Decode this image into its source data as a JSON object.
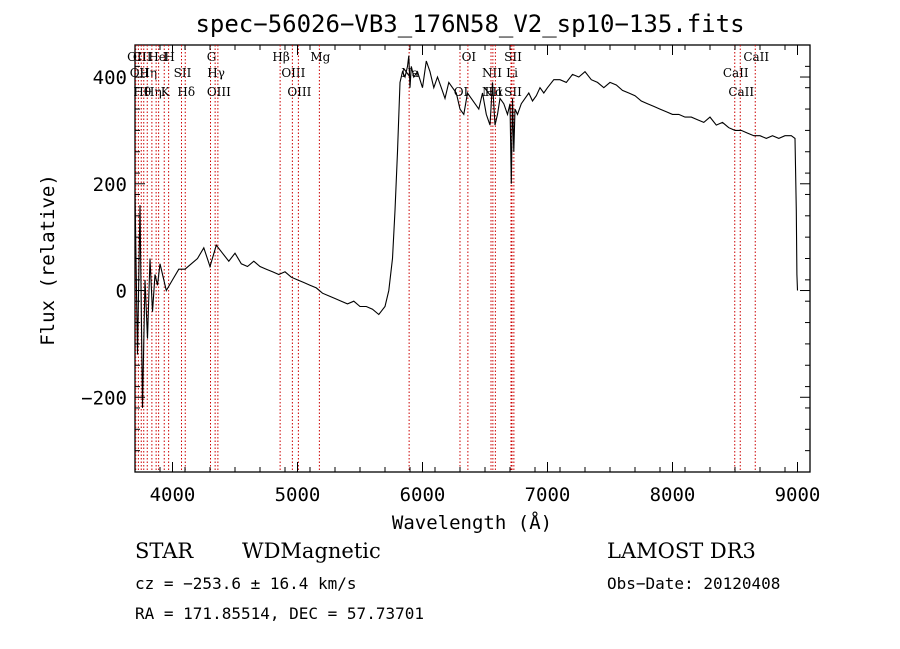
{
  "chart_data": {
    "type": "line",
    "title": "spec−56026−VB3_176N58_V2_sp10−135.fits",
    "xlabel": "Wavelength (Å)",
    "ylabel": "Flux (relative)",
    "xlim": [
      3700,
      9100
    ],
    "ylim": [
      -340,
      460
    ],
    "xticks": [
      4000,
      5000,
      6000,
      7000,
      8000,
      9000
    ],
    "yticks": [
      -200,
      0,
      200,
      400
    ],
    "xtick_labels": [
      "4000",
      "5000",
      "6000",
      "7000",
      "8000",
      "9000"
    ],
    "ytick_labels": [
      "−200",
      "0",
      "200",
      "400"
    ],
    "series": [
      {
        "name": "flux",
        "x": [
          3700,
          3720,
          3740,
          3760,
          3780,
          3800,
          3820,
          3840,
          3860,
          3880,
          3900,
          3950,
          4000,
          4050,
          4100,
          4150,
          4200,
          4250,
          4300,
          4350,
          4400,
          4450,
          4500,
          4550,
          4600,
          4650,
          4700,
          4750,
          4800,
          4850,
          4900,
          4950,
          5000,
          5050,
          5100,
          5150,
          5200,
          5250,
          5300,
          5350,
          5400,
          5450,
          5500,
          5550,
          5600,
          5650,
          5700,
          5730,
          5760,
          5780,
          5800,
          5820,
          5840,
          5860,
          5880,
          5890,
          5900,
          5910,
          5930,
          5960,
          6000,
          6030,
          6060,
          6090,
          6120,
          6150,
          6180,
          6210,
          6240,
          6270,
          6300,
          6330,
          6360,
          6390,
          6420,
          6450,
          6480,
          6510,
          6540,
          6560,
          6580,
          6600,
          6620,
          6650,
          6680,
          6700,
          6710,
          6720,
          6730,
          6740,
          6760,
          6790,
          6820,
          6850,
          6880,
          6910,
          6940,
          6970,
          7000,
          7050,
          7100,
          7150,
          7200,
          7250,
          7300,
          7350,
          7400,
          7450,
          7500,
          7550,
          7600,
          7650,
          7700,
          7750,
          7800,
          7850,
          7900,
          7950,
          8000,
          8050,
          8100,
          8150,
          8200,
          8250,
          8300,
          8350,
          8400,
          8450,
          8500,
          8550,
          8600,
          8650,
          8700,
          8750,
          8800,
          8850,
          8900,
          8950,
          8980,
          8990,
          8995,
          9000
        ],
        "y": [
          180,
          -120,
          160,
          -220,
          20,
          -90,
          60,
          -40,
          30,
          10,
          50,
          0,
          20,
          40,
          40,
          50,
          60,
          80,
          45,
          85,
          70,
          55,
          70,
          50,
          45,
          55,
          45,
          40,
          35,
          30,
          35,
          25,
          20,
          15,
          10,
          5,
          -5,
          -10,
          -15,
          -20,
          -25,
          -20,
          -30,
          -30,
          -35,
          -45,
          -30,
          0,
          60,
          150,
          260,
          390,
          410,
          400,
          420,
          440,
          380,
          420,
          400,
          410,
          380,
          430,
          410,
          380,
          400,
          380,
          360,
          390,
          380,
          370,
          340,
          330,
          370,
          360,
          350,
          340,
          370,
          330,
          310,
          390,
          310,
          330,
          360,
          350,
          330,
          350,
          200,
          360,
          260,
          340,
          330,
          350,
          360,
          370,
          355,
          365,
          380,
          370,
          380,
          395,
          395,
          390,
          405,
          400,
          410,
          395,
          390,
          380,
          390,
          385,
          375,
          370,
          365,
          355,
          350,
          345,
          340,
          335,
          330,
          330,
          325,
          325,
          320,
          315,
          325,
          310,
          315,
          305,
          300,
          300,
          295,
          290,
          290,
          285,
          290,
          285,
          290,
          290,
          285,
          150,
          30,
          0
        ]
      }
    ],
    "lines": [
      {
        "wl": 3706,
        "labels": [
          "OII"
        ]
      },
      {
        "wl": 3727,
        "labels": [
          "OII"
        ]
      },
      {
        "wl": 3750,
        "labels": [
          "Hθ",
          "CII"
        ]
      },
      {
        "wl": 3770,
        "labels": []
      },
      {
        "wl": 3798,
        "labels": [
          "Hη"
        ]
      },
      {
        "wl": 3835,
        "labels": [
          "Hη"
        ]
      },
      {
        "wl": 3869,
        "labels": [
          "He"
        ]
      },
      {
        "wl": 3889,
        "labels": []
      },
      {
        "wl": 3934,
        "labels": [
          "K",
          "I"
        ]
      },
      {
        "wl": 3969,
        "labels": [
          "H"
        ]
      },
      {
        "wl": 4072,
        "labels": [
          "SII"
        ]
      },
      {
        "wl": 4102,
        "labels": [
          "Hδ"
        ]
      },
      {
        "wl": 4304,
        "labels": [
          "G"
        ]
      },
      {
        "wl": 4341,
        "labels": [
          "Hγ"
        ]
      },
      {
        "wl": 4363,
        "labels": [
          "OIII"
        ]
      },
      {
        "wl": 4861,
        "labels": [
          "Hβ"
        ]
      },
      {
        "wl": 4959,
        "labels": [
          "OIII"
        ]
      },
      {
        "wl": 5007,
        "labels": [
          "OIII"
        ]
      },
      {
        "wl": 5175,
        "labels": [
          "Mg"
        ]
      },
      {
        "wl": 5893,
        "labels": [
          "Na"
        ]
      },
      {
        "wl": 6300,
        "labels": [
          "OI"
        ]
      },
      {
        "wl": 6363,
        "labels": [
          "OI"
        ]
      },
      {
        "wl": 6548,
        "labels": [
          "NII",
          "NII"
        ]
      },
      {
        "wl": 6563,
        "labels": [
          "Hα"
        ]
      },
      {
        "wl": 6583,
        "labels": []
      },
      {
        "wl": 6708,
        "labels": [
          "Li"
        ]
      },
      {
        "wl": 6716,
        "labels": [
          "SII",
          "SII"
        ]
      },
      {
        "wl": 6731,
        "labels": []
      },
      {
        "wl": 8498,
        "labels": [
          "CaII"
        ]
      },
      {
        "wl": 8542,
        "labels": [
          "CaII"
        ]
      },
      {
        "wl": 8662,
        "labels": [
          "CaII"
        ]
      }
    ],
    "line_label_color": "#cc0000",
    "grid": false
  },
  "info": {
    "class": "STAR",
    "subclass": "WDMagnetic",
    "survey": "LAMOST DR3",
    "cz": "cz = −253.6 ± 16.4 km/s",
    "obs_date": "Obs−Date: 20120408",
    "coords": "RA = 171.85514, DEC =  57.73701"
  }
}
